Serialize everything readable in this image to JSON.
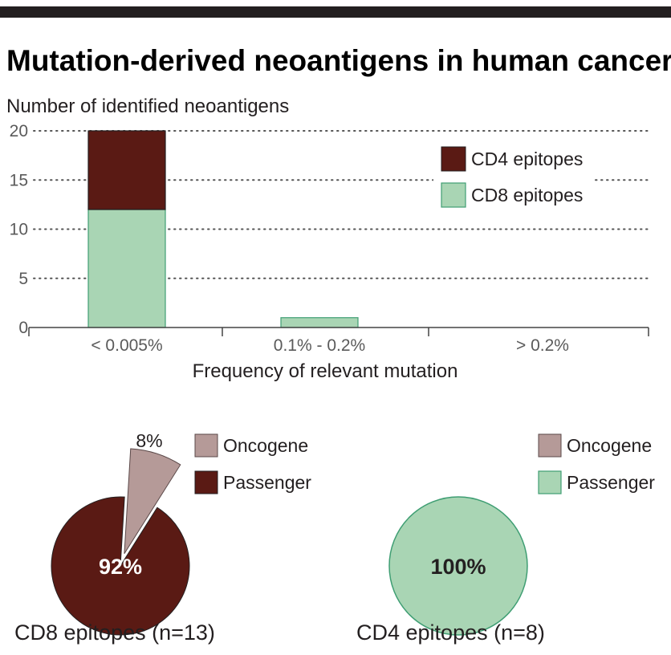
{
  "title": "Mutation-derived neoantigens in human cancer",
  "colors": {
    "cd4": "#5a1a14",
    "cd8": "#a9d5b4",
    "cd8_stroke": "#3f9e73",
    "oncogene": "#b59a98",
    "passenger_cd8": "#5a1a14",
    "passenger_cd4": "#a9d5b4",
    "top_bar": "#231f20"
  },
  "chart_data": [
    {
      "type": "bar",
      "stacked": true,
      "title": "",
      "ylabel": "Number of identified neoantigens",
      "xlabel": "Frequency of relevant mutation",
      "categories": [
        "< 0.005%",
        "0.1% - 0.2%",
        "> 0.2%"
      ],
      "series": [
        {
          "name": "CD8 epitopes",
          "values": [
            12,
            1,
            0
          ]
        },
        {
          "name": "CD4 epitopes",
          "values": [
            8,
            0,
            0
          ]
        }
      ],
      "legend_order": [
        "CD4 epitopes",
        "CD8 epitopes"
      ],
      "yticks": [
        0,
        5,
        10,
        15,
        20
      ],
      "ylim": [
        0,
        20
      ],
      "grid": "dotted-horizontal",
      "legend_position": "top-right"
    },
    {
      "type": "pie",
      "title": "CD8 epitopes (n=13)",
      "slices": [
        {
          "name": "Oncogene",
          "value": 8,
          "label": "8%",
          "exploded": true
        },
        {
          "name": "Passenger",
          "value": 92,
          "label": "92%"
        }
      ],
      "legend": [
        "Oncogene",
        "Passenger"
      ]
    },
    {
      "type": "pie",
      "title": "CD4 epitopes (n=8)",
      "slices": [
        {
          "name": "Oncogene",
          "value": 0,
          "label": ""
        },
        {
          "name": "Passenger",
          "value": 100,
          "label": "100%"
        }
      ],
      "legend": [
        "Oncogene",
        "Passenger"
      ]
    }
  ]
}
